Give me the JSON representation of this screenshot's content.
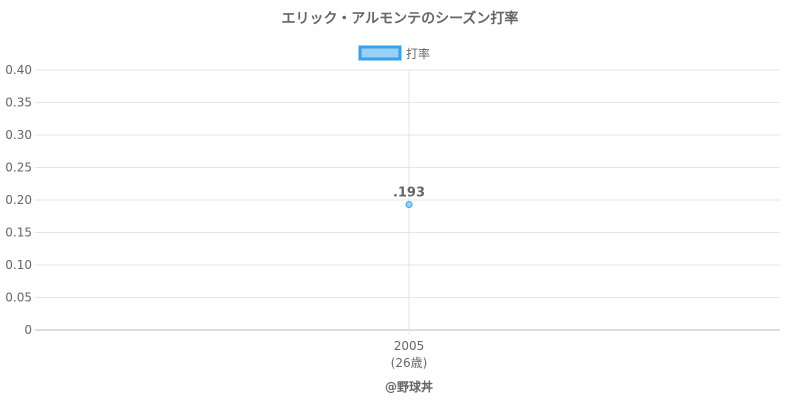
{
  "chart_data": {
    "type": "line",
    "title": "エリック・アルモンテのシーズン打率",
    "categories": [
      "2005"
    ],
    "category_sublabels": [
      "(26歳)"
    ],
    "series": [
      {
        "name": "打率",
        "values": [
          0.193
        ],
        "data_labels": [
          ".193"
        ]
      }
    ],
    "ylim": [
      0,
      0.4
    ],
    "yticks": [
      "0",
      "0.05",
      "0.10",
      "0.15",
      "0.20",
      "0.25",
      "0.30",
      "0.35",
      "0.40"
    ],
    "grid": true,
    "legend": "top",
    "colors": {
      "series_fill": "#9AD0F5",
      "series_stroke": "#36A2EB"
    }
  },
  "credit": "@野球丼"
}
